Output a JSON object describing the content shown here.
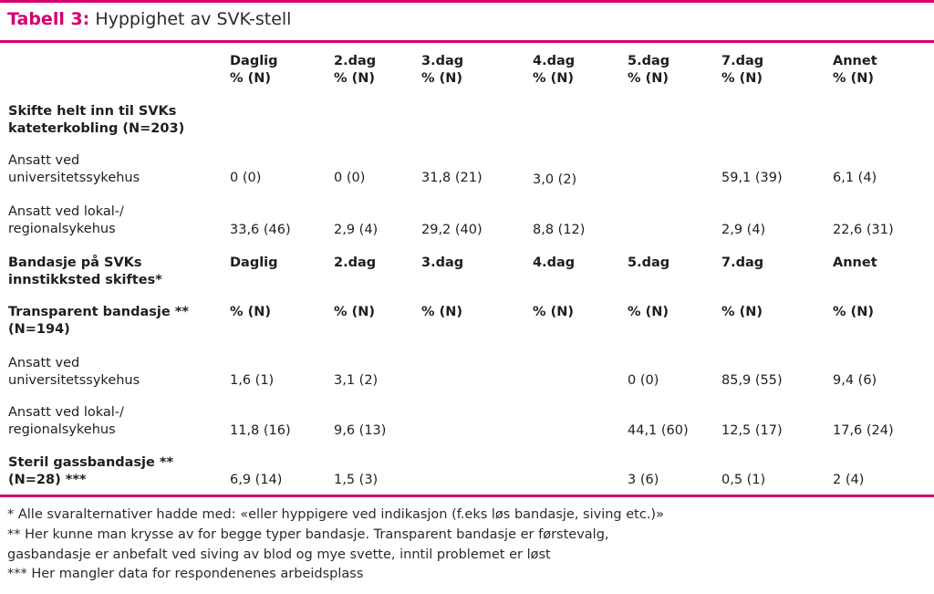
{
  "title": {
    "label": "Tabell 3:",
    "text": "Hyppighet av SVK-stell"
  },
  "header": {
    "cols": [
      "Daglig\n% (N)",
      "2.dag\n% (N)",
      "3.dag\n% (N)",
      "4.dag\n% (N)",
      "5.dag\n% (N)",
      "7.dag\n% (N)",
      "Annet\n% (N)"
    ]
  },
  "section1": {
    "title": "Skifte helt inn til SVKs\nkateterkobling (N=203)",
    "rows": [
      {
        "label": "Ansatt ved\nuniversitetssykehus",
        "values": [
          "0 (0)",
          "0 (0)",
          "31,8 (21)",
          "3,0 (2)",
          "",
          "59,1 (39)",
          "6,1 (4)"
        ]
      },
      {
        "label": "Ansatt ved lokal-/\nregionalsykehus",
        "values": [
          "33,6 (46)",
          "2,9 (4)",
          "29,2 (40)",
          "8,8 (12)",
          "",
          "2,9 (4)",
          "22,6 (31)"
        ]
      }
    ]
  },
  "section2": {
    "title": "Bandasje på SVKs\ninnstikksted skiftes*",
    "cols": [
      "Daglig",
      "2.dag",
      "3.dag",
      "4.dag",
      "5.dag",
      "7.dag",
      "Annet"
    ],
    "sub_title": "Transparent bandasje **\n(N=194)",
    "sub_cols": [
      "% (N)",
      "% (N)",
      "% (N)",
      "% (N)",
      "% (N)",
      "% (N)",
      "% (N)"
    ],
    "rows": [
      {
        "label": "Ansatt ved\nuniversitetssykehus",
        "values": [
          "1,6 (1)",
          "3,1 (2)",
          "",
          "",
          "0 (0)",
          "85,9 (55)",
          "9,4 (6)"
        ]
      },
      {
        "label": "Ansatt ved lokal-/\nregionalsykehus",
        "values": [
          "11,8 (16)",
          "9,6 (13)",
          "",
          "",
          "44,1 (60)",
          "12,5 (17)",
          "17,6 (24)"
        ]
      }
    ],
    "steril": {
      "label": "Steril gassbandasje **\n(N=28) ***",
      "values": [
        "6,9 (14)",
        "1,5 (3)",
        "",
        "",
        "3 (6)",
        "0,5 (1)",
        "2 (4)"
      ]
    }
  },
  "footnotes": [
    "* Alle svaralternativer hadde med: «eller hyppigere ved indikasjon (f.eks løs bandasje, siving etc.)»",
    "** Her kunne man krysse av for begge typer bandasje.  Transparent bandasje er førstevalg,",
    "gasbandasje er anbefalt ved siving av blod og mye svette, inntil problemet er løst",
    "*** Her mangler data for respondenenes arbeidsplass"
  ],
  "colors": {
    "accent": "#d5006d",
    "text": "#1e1e1e"
  }
}
